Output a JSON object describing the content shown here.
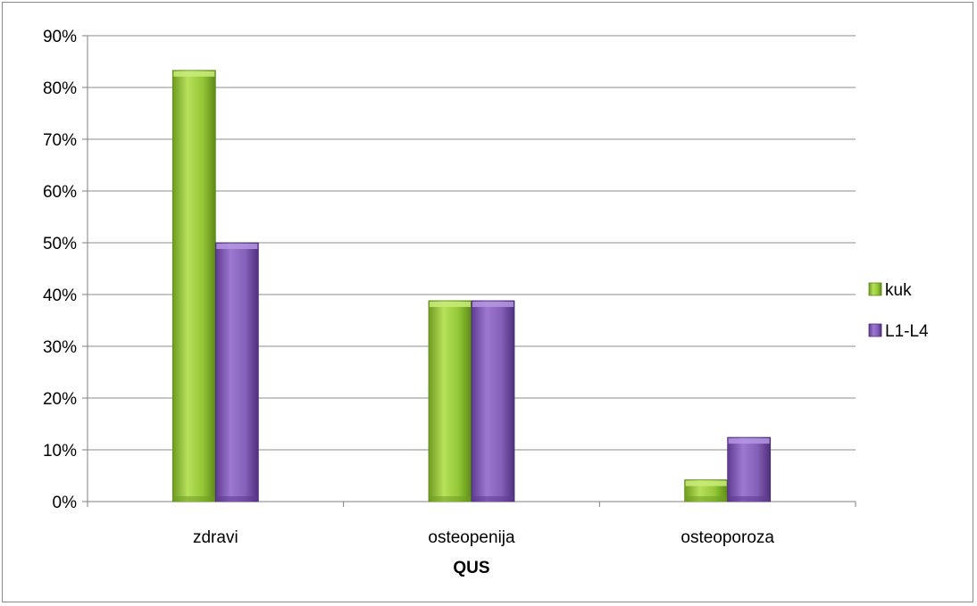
{
  "chart_data": {
    "type": "bar",
    "title": "",
    "xlabel": "QUS",
    "ylabel": "",
    "categories": [
      "zdravi",
      "osteopenija",
      "osteoporoza"
    ],
    "series": [
      {
        "name": "kuk",
        "values": [
          83.3,
          38.8,
          4.2
        ],
        "color": "#8cbf2f"
      },
      {
        "name": "L1-L4",
        "values": [
          50.0,
          38.8,
          12.4
        ],
        "color": "#8057b3"
      }
    ],
    "ylim": [
      0,
      90
    ],
    "yticks": [
      "0%",
      "10%",
      "20%",
      "30%",
      "40%",
      "50%",
      "60%",
      "70%",
      "80%",
      "90%"
    ],
    "grid": true,
    "legend": "right"
  }
}
